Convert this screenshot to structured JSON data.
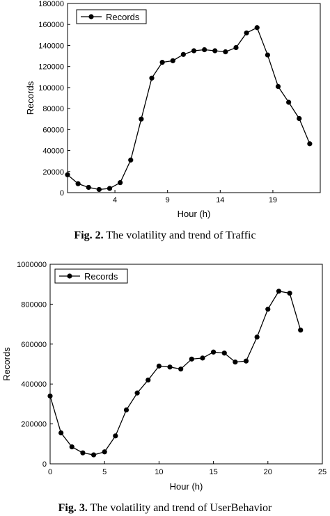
{
  "captions": [
    {
      "label": "Fig. 2.",
      "text": " The volatility and trend of Traffic"
    },
    {
      "label": "Fig. 3.",
      "text": " The volatility and trend of UserBehavior"
    }
  ],
  "chart_data": [
    {
      "type": "line",
      "xlabel": "Hour (h)",
      "ylabel": "Records",
      "xlim": [
        -0.5,
        23.5
      ],
      "ylim": [
        0,
        180000
      ],
      "xticks": [
        4,
        9,
        14,
        19
      ],
      "yticks": [
        0,
        20000,
        40000,
        60000,
        80000,
        100000,
        120000,
        140000,
        160000,
        180000
      ],
      "legend": "top-left",
      "grid": false,
      "series": [
        {
          "name": "Records",
          "x": [
            -0.5,
            0.5,
            1.5,
            2.5,
            3.5,
            4.5,
            5.5,
            6.5,
            7.5,
            8.5,
            9.5,
            10.5,
            11.5,
            12.5,
            13.5,
            14.5,
            15.5,
            16.5,
            17.5,
            18.5,
            19.5,
            20.5,
            21.5,
            22.5
          ],
          "values": [
            17000,
            8500,
            5000,
            3000,
            4000,
            9500,
            31000,
            70000,
            109000,
            124000,
            125500,
            131500,
            135000,
            136000,
            135000,
            134000,
            138000,
            152000,
            157000,
            131000,
            101000,
            86000,
            70500,
            46500
          ]
        }
      ]
    },
    {
      "type": "line",
      "xlabel": "Hour (h)",
      "ylabel": "Records",
      "xlim": [
        0,
        25
      ],
      "ylim": [
        0,
        1000000
      ],
      "xticks": [
        0,
        5,
        10,
        15,
        20,
        25
      ],
      "yticks": [
        0,
        200000,
        400000,
        600000,
        800000,
        1000000
      ],
      "legend": "top-left",
      "grid": false,
      "series": [
        {
          "name": "Records",
          "x": [
            0,
            1,
            2,
            3,
            4,
            5,
            6,
            7,
            8,
            9,
            10,
            11,
            12,
            13,
            14,
            15,
            16,
            17,
            18,
            19,
            20,
            21,
            22,
            23
          ],
          "values": [
            340000,
            155000,
            85000,
            55000,
            45000,
            60000,
            140000,
            270000,
            355000,
            420000,
            490000,
            485000,
            475000,
            525000,
            530000,
            560000,
            555000,
            510000,
            515000,
            635000,
            775000,
            865000,
            855000,
            670000
          ]
        }
      ]
    }
  ]
}
